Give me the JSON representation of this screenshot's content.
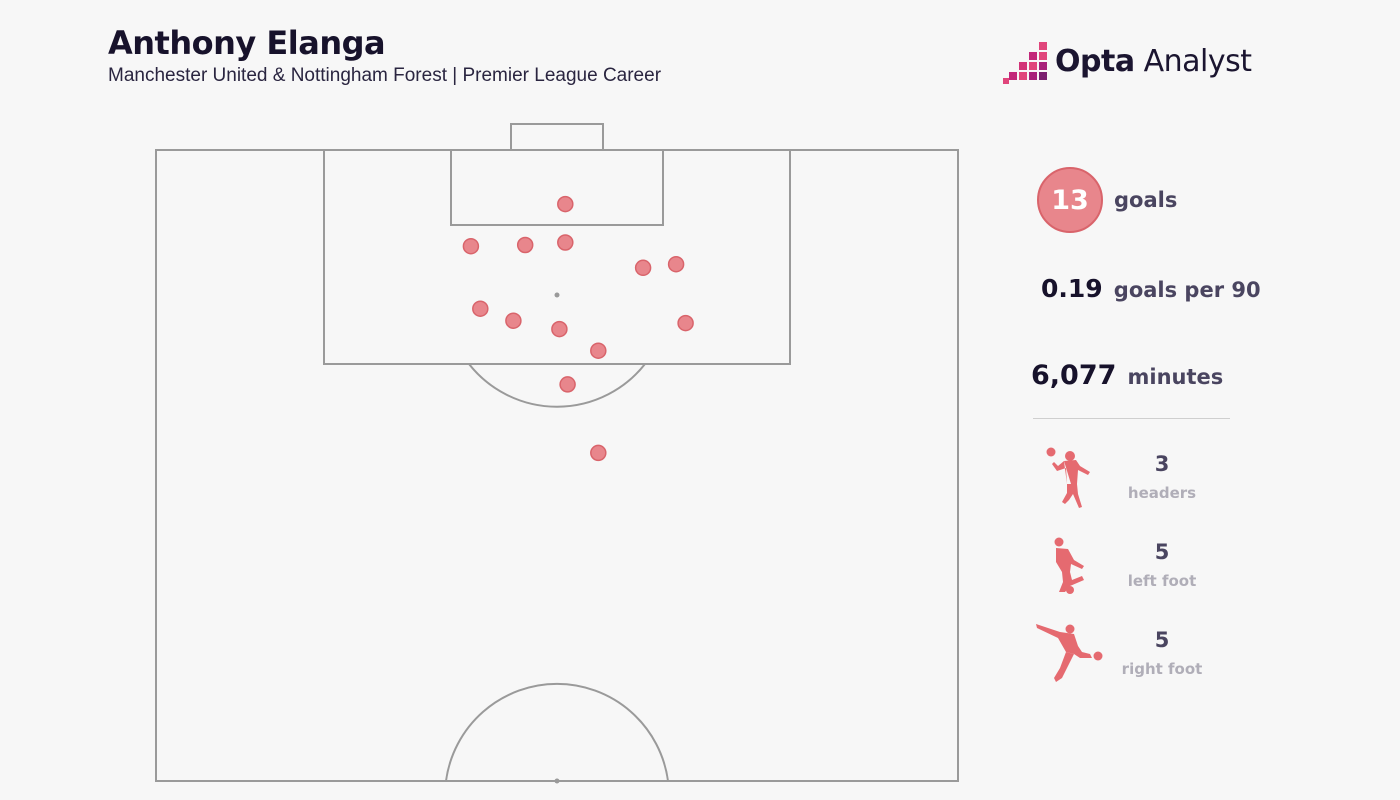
{
  "header": {
    "title": "Anthony Elanga",
    "subtitle": "Manchester United & Nottingham Forest | Premier League Career"
  },
  "logo": {
    "brand": "Opta",
    "product": "Analyst"
  },
  "stats": {
    "goals_value": "13",
    "goals_label": "goals",
    "per90_value": "0.19",
    "per90_label": "goals per 90",
    "minutes_value": "6,077",
    "minutes_label": "minutes"
  },
  "breakdown": [
    {
      "icon": "header-player-icon",
      "value": "3",
      "label": "headers"
    },
    {
      "icon": "left-foot-player-icon",
      "value": "5",
      "label": "left foot"
    },
    {
      "icon": "right-foot-player-icon",
      "value": "5",
      "label": "right foot"
    }
  ],
  "colors": {
    "accent": "#e8868c",
    "accent_dark": "#d9646b",
    "pitch_line": "#9a9a9a"
  },
  "chart_data": {
    "type": "scatter",
    "description_units": "pitch metres: x across width (0-68, left touchline = 0), y distance from goal line (0-52.5, halfway line)",
    "x_range": [
      0,
      68
    ],
    "y_range": [
      0,
      52.5
    ],
    "points": [
      {
        "x": 34.7,
        "y": 4.5
      },
      {
        "x": 26.7,
        "y": 8.0
      },
      {
        "x": 31.3,
        "y": 7.9
      },
      {
        "x": 34.7,
        "y": 7.7
      },
      {
        "x": 41.3,
        "y": 9.8
      },
      {
        "x": 44.1,
        "y": 9.5
      },
      {
        "x": 27.5,
        "y": 13.2
      },
      {
        "x": 30.3,
        "y": 14.2
      },
      {
        "x": 34.2,
        "y": 14.9
      },
      {
        "x": 37.5,
        "y": 16.7
      },
      {
        "x": 44.9,
        "y": 14.4
      },
      {
        "x": 34.9,
        "y": 19.5
      },
      {
        "x": 37.5,
        "y": 25.2
      }
    ]
  }
}
